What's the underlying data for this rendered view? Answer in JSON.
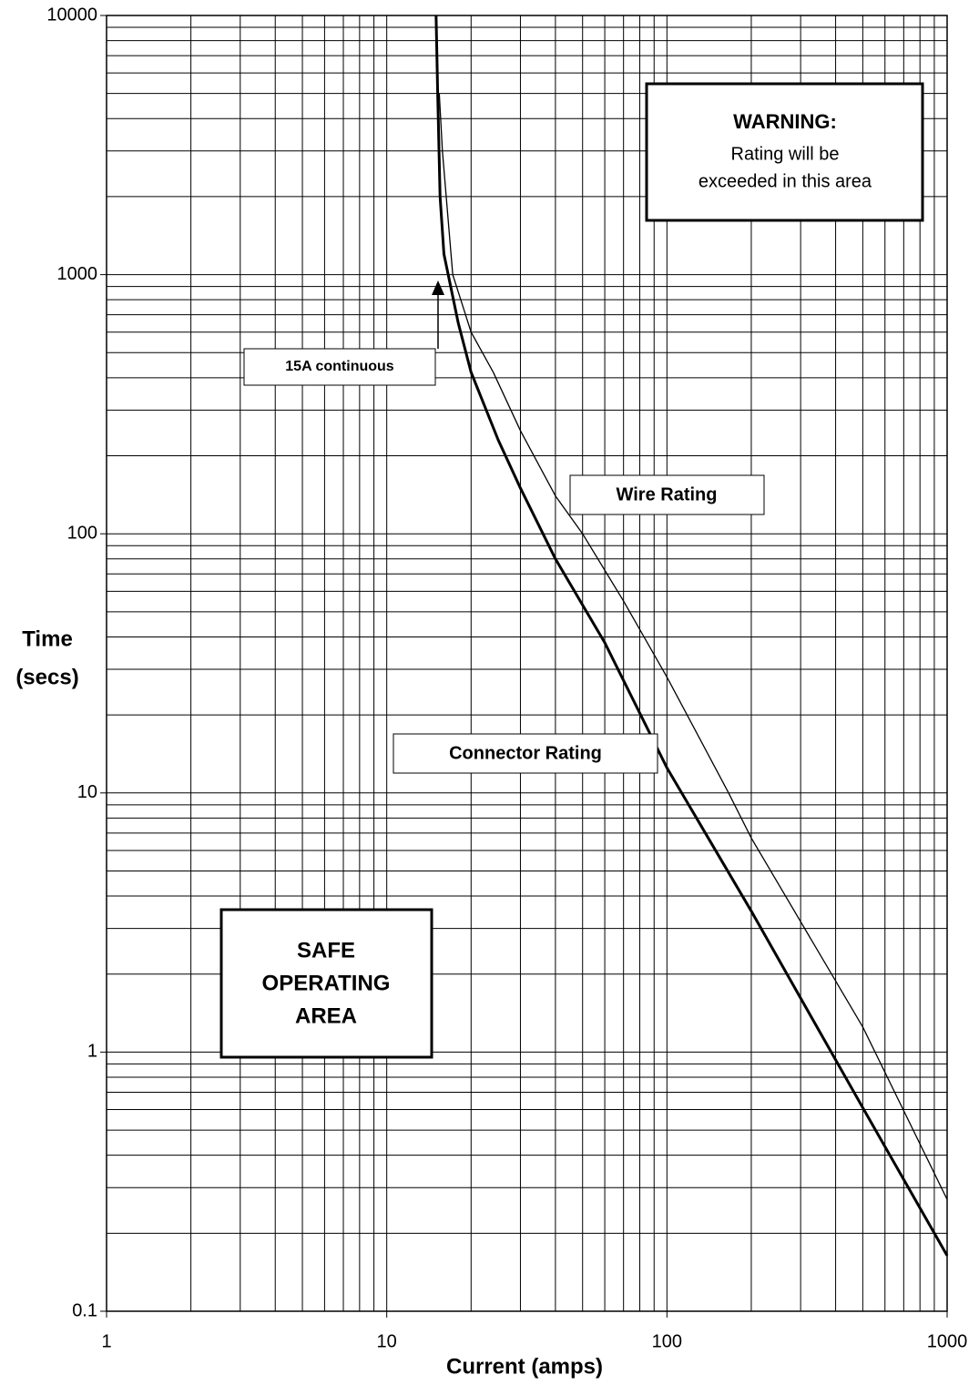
{
  "chart_data": {
    "type": "line",
    "x_label": "Current (amps)",
    "y_label": [
      "Time",
      "(secs)"
    ],
    "xscale": "log",
    "yscale": "log",
    "xlim": [
      1,
      1000
    ],
    "ylim": [
      0.1,
      10000
    ],
    "xticks": [
      1,
      10,
      100,
      1000
    ],
    "yticks": [
      0.1,
      1,
      10,
      100,
      1000,
      10000
    ],
    "grid": true,
    "minor_grid": true,
    "series": [
      {
        "name": "Connector Rating",
        "color": "#000000",
        "x": [
          15,
          15.2,
          15.5,
          16,
          18,
          20,
          25,
          30,
          40,
          60,
          100,
          200,
          500,
          1000
        ],
        "values": [
          10000,
          5000,
          2000,
          1200,
          650,
          420,
          230,
          150,
          80,
          38,
          12.5,
          3.5,
          0.61,
          0.164
        ]
      },
      {
        "name": "Wire Rating",
        "color": "#000000",
        "x": [
          15.4,
          15.8,
          17.2,
          20,
          24,
          30,
          40,
          50,
          70,
          100,
          166,
          200,
          500,
          1000
        ],
        "values": [
          5000,
          3000,
          1000,
          600,
          420,
          250,
          140,
          100,
          55,
          28,
          10,
          6.7,
          1.25,
          0.27
        ]
      }
    ],
    "warning_title": "WARNING:",
    "warning_text": [
      "Rating will be",
      "exceeded in this area"
    ],
    "arrow_label": "15A continuous",
    "safe_area": [
      "SAFE",
      "OPERATING",
      "AREA"
    ]
  }
}
